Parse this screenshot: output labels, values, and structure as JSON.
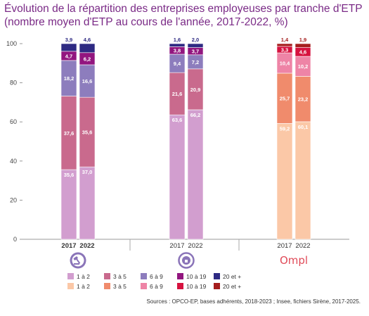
{
  "title_line1": "Évolution de la répartition des entreprises employeuses par tranche d'ETP",
  "title_line2": "(nombre moyen d'ETP au cours de l'année, 2017-2022, %)",
  "source": "Sources : OPCO-EP, bases adhérents, 2018-2023 ; Insee, fichiers Sirène, 2017-2025.",
  "groups": [
    {
      "logo": "gavel-icon",
      "years": [
        "2017",
        "2022"
      ],
      "years_bold": true
    },
    {
      "logo": "etp-logo-icon",
      "years": [
        "2017",
        "2022"
      ],
      "years_bold": false
    },
    {
      "logo": "ompl-logo",
      "logo_text": "Ompl",
      "years": [
        "2017",
        "2022"
      ],
      "years_bold": false
    }
  ],
  "palettes": {
    "purple": [
      "#d29ecf",
      "#c96a8d",
      "#8d7dbd",
      "#92167f",
      "#2e2a83"
    ],
    "orange": [
      "#fbc8a7",
      "#f08b6c",
      "#ee84a6",
      "#d6123f",
      "#a51d1d"
    ]
  },
  "legend": {
    "purple": [
      "1 à 2",
      "3 à 5",
      "6 à 9",
      "10 à 19",
      "20 et +"
    ],
    "orange": [
      "1 à 2",
      "3 à 5",
      "6 à 9",
      "10 à 19",
      "20 et +"
    ]
  },
  "chart_data": {
    "type": "bar",
    "stacked": true,
    "ylim": [
      0,
      100
    ],
    "yticks": [
      0,
      20,
      40,
      60,
      80,
      100
    ],
    "series_names": [
      "1 à 2",
      "3 à 5",
      "6 à 9",
      "10 à 19",
      "20 et +"
    ],
    "bars": [
      {
        "group": 0,
        "year": "2017",
        "palette": "purple",
        "values": [
          35.6,
          37.6,
          18.2,
          4.7,
          3.9
        ],
        "labels": [
          "35,6",
          "37,6",
          "18,2",
          "4,7",
          "3,9"
        ]
      },
      {
        "group": 0,
        "year": "2022",
        "palette": "purple",
        "values": [
          37.0,
          35.6,
          16.6,
          6.2,
          4.6
        ],
        "labels": [
          "37,0",
          "35,6",
          "16,6",
          "6,2",
          "4,6"
        ]
      },
      {
        "group": 1,
        "year": "2017",
        "palette": "purple",
        "values": [
          63.6,
          21.6,
          9.4,
          3.8,
          1.6
        ],
        "labels": [
          "63,6",
          "21,6",
          "9,4",
          "3,8",
          "1,6"
        ]
      },
      {
        "group": 1,
        "year": "2022",
        "palette": "purple",
        "values": [
          66.2,
          20.9,
          7.2,
          3.7,
          2.0
        ],
        "labels": [
          "66,2",
          "20,9",
          "7,2",
          "3,7",
          "2,0"
        ]
      },
      {
        "group": 2,
        "year": "2017",
        "palette": "orange",
        "values": [
          59.2,
          25.7,
          10.4,
          3.3,
          1.4
        ],
        "labels": [
          "59,2",
          "25,7",
          "10,4",
          "3,3",
          "1,4"
        ]
      },
      {
        "group": 2,
        "year": "2022",
        "palette": "orange",
        "values": [
          60.1,
          23.2,
          10.2,
          4.6,
          1.9
        ],
        "labels": [
          "60,1",
          "23,2",
          "10,2",
          "4,6",
          "1,9"
        ]
      }
    ]
  }
}
